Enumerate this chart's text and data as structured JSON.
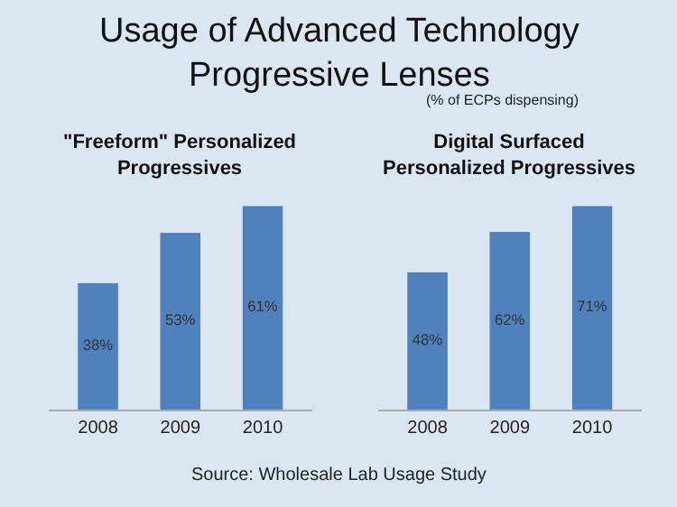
{
  "chart_data": [
    {
      "type": "bar",
      "title": "Usage of Advanced Technology Progressive Lenses",
      "annotations": [
        "\"Freeform\" Personalized Progressives",
        "Source: Wholesale Lab Usage Study"
      ],
      "categories": [
        "2008",
        "2009",
        "2010"
      ],
      "values": [
        38,
        53,
        61
      ],
      "value_labels": [
        "38%",
        "53%",
        "61%"
      ],
      "color": "#4f81bd",
      "tick_labels": "x",
      "grid": false
    },
    {
      "type": "bar",
      "subtitle": "(% of ECPs dispensing)",
      "annotations": [
        "Digital Surfaced Personalized Progressives"
      ],
      "categories": [
        "2008",
        "2009",
        "2010"
      ],
      "values": [
        48,
        62,
        71
      ],
      "value_labels": [
        "48%",
        "62%",
        "71%"
      ],
      "color": "#4f81bd",
      "tick_labels": "x",
      "grid": false
    }
  ]
}
